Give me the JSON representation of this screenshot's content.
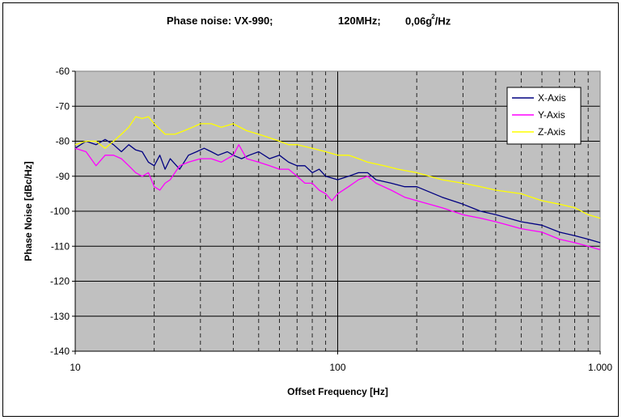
{
  "chart_data": {
    "type": "line",
    "title_parts": {
      "part1": "Phase noise: VX-990;",
      "part2": "120MHz;",
      "part3_prefix": "0,06g",
      "part3_sup": "2",
      "part3_suffix": "/Hz"
    },
    "xlabel": "Offset Frequency [Hz]",
    "ylabel": "Phase Noise [dBc/Hz]",
    "xscale": "log",
    "xlim": [
      10,
      1000
    ],
    "ylim": [
      -140,
      -60
    ],
    "x_tick_labels": [
      "10",
      "100",
      "1.000"
    ],
    "y_tick_labels": [
      "-60",
      "-70",
      "-80",
      "-90",
      "-100",
      "-110",
      "-120",
      "-130",
      "-140"
    ],
    "grid": true,
    "legend_position": "top-right",
    "plot_background": "#c0c0c0",
    "series": [
      {
        "name": "X-Axis",
        "color": "#000080",
        "points": [
          [
            10,
            -82
          ],
          [
            11,
            -80
          ],
          [
            12,
            -81
          ],
          [
            13,
            -79.5
          ],
          [
            14,
            -81
          ],
          [
            15,
            -83
          ],
          [
            16,
            -81
          ],
          [
            17,
            -82.5
          ],
          [
            18,
            -83
          ],
          [
            19,
            -86
          ],
          [
            20,
            -87
          ],
          [
            21,
            -84
          ],
          [
            22,
            -88
          ],
          [
            23,
            -85
          ],
          [
            25,
            -88
          ],
          [
            27,
            -84
          ],
          [
            29,
            -83
          ],
          [
            31,
            -82
          ],
          [
            33,
            -83
          ],
          [
            35,
            -84
          ],
          [
            38,
            -83
          ],
          [
            40,
            -84
          ],
          [
            43,
            -85
          ],
          [
            46,
            -84
          ],
          [
            50,
            -83
          ],
          [
            55,
            -85
          ],
          [
            60,
            -84
          ],
          [
            65,
            -86
          ],
          [
            70,
            -87
          ],
          [
            75,
            -87
          ],
          [
            80,
            -89
          ],
          [
            85,
            -88
          ],
          [
            90,
            -90
          ],
          [
            100,
            -91
          ],
          [
            110,
            -90
          ],
          [
            120,
            -89
          ],
          [
            130,
            -89
          ],
          [
            140,
            -91
          ],
          [
            160,
            -92
          ],
          [
            180,
            -93
          ],
          [
            200,
            -93
          ],
          [
            250,
            -96
          ],
          [
            300,
            -98
          ],
          [
            350,
            -100
          ],
          [
            400,
            -101
          ],
          [
            500,
            -103
          ],
          [
            600,
            -104
          ],
          [
            700,
            -106
          ],
          [
            800,
            -107
          ],
          [
            900,
            -108
          ],
          [
            1000,
            -109
          ]
        ]
      },
      {
        "name": "Y-Axis",
        "color": "#ff00ff",
        "points": [
          [
            10,
            -82
          ],
          [
            11,
            -83
          ],
          [
            12,
            -87
          ],
          [
            13,
            -84
          ],
          [
            14,
            -84
          ],
          [
            15,
            -85
          ],
          [
            16,
            -87
          ],
          [
            17,
            -89
          ],
          [
            18,
            -90
          ],
          [
            19,
            -89
          ],
          [
            20,
            -93
          ],
          [
            21,
            -94
          ],
          [
            22,
            -92
          ],
          [
            23,
            -91
          ],
          [
            25,
            -87
          ],
          [
            27,
            -86
          ],
          [
            30,
            -85
          ],
          [
            33,
            -85
          ],
          [
            36,
            -86
          ],
          [
            40,
            -84
          ],
          [
            42,
            -81
          ],
          [
            45,
            -85
          ],
          [
            50,
            -86
          ],
          [
            55,
            -87
          ],
          [
            60,
            -88
          ],
          [
            65,
            -88
          ],
          [
            70,
            -90
          ],
          [
            75,
            -92
          ],
          [
            80,
            -92
          ],
          [
            85,
            -94
          ],
          [
            90,
            -95
          ],
          [
            95,
            -97
          ],
          [
            100,
            -95
          ],
          [
            110,
            -93
          ],
          [
            120,
            -91
          ],
          [
            130,
            -90
          ],
          [
            140,
            -92
          ],
          [
            160,
            -94
          ],
          [
            180,
            -96
          ],
          [
            200,
            -97
          ],
          [
            250,
            -99
          ],
          [
            300,
            -101
          ],
          [
            350,
            -102
          ],
          [
            400,
            -103
          ],
          [
            500,
            -105
          ],
          [
            600,
            -106
          ],
          [
            700,
            -108
          ],
          [
            800,
            -109
          ],
          [
            900,
            -110
          ],
          [
            1000,
            -111
          ]
        ]
      },
      {
        "name": "Z-Axis",
        "color": "#ffff00",
        "points": [
          [
            10,
            -81
          ],
          [
            11,
            -80
          ],
          [
            12,
            -80
          ],
          [
            13,
            -82
          ],
          [
            14,
            -80
          ],
          [
            15,
            -78
          ],
          [
            16,
            -76
          ],
          [
            17,
            -73
          ],
          [
            18,
            -73.5
          ],
          [
            19,
            -73
          ],
          [
            20,
            -75
          ],
          [
            22,
            -78
          ],
          [
            24,
            -78
          ],
          [
            26,
            -77
          ],
          [
            28,
            -76
          ],
          [
            30,
            -75
          ],
          [
            33,
            -75
          ],
          [
            36,
            -76
          ],
          [
            40,
            -75
          ],
          [
            45,
            -77
          ],
          [
            50,
            -78
          ],
          [
            55,
            -79
          ],
          [
            60,
            -80
          ],
          [
            65,
            -81
          ],
          [
            70,
            -81
          ],
          [
            80,
            -82
          ],
          [
            90,
            -83
          ],
          [
            100,
            -84
          ],
          [
            110,
            -84
          ],
          [
            120,
            -85
          ],
          [
            130,
            -86
          ],
          [
            150,
            -87
          ],
          [
            170,
            -88
          ],
          [
            200,
            -89
          ],
          [
            250,
            -91
          ],
          [
            300,
            -92
          ],
          [
            350,
            -93
          ],
          [
            400,
            -94
          ],
          [
            500,
            -95
          ],
          [
            600,
            -97
          ],
          [
            700,
            -98
          ],
          [
            800,
            -99
          ],
          [
            900,
            -101
          ],
          [
            1000,
            -102
          ]
        ]
      }
    ]
  }
}
